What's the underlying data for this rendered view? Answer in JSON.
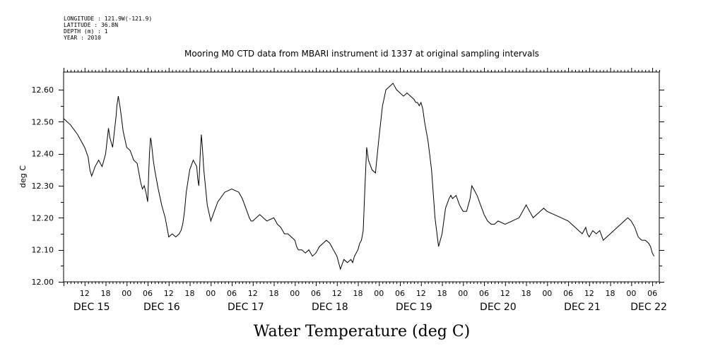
{
  "header": {
    "longitude": "LONGITUDE : 121.9W(-121.9)",
    "latitude": "LATITUDE : 36.8N",
    "depth": "DEPTH (m) : 1",
    "year": "YEAR : 2010"
  },
  "chart_data": {
    "type": "line",
    "title": "Mooring M0 CTD data from MBARI instrument id 1337 at original sampling intervals",
    "xlabel": "Water Temperature (deg C)",
    "ylabel": "deg C",
    "ylim": [
      12.0,
      12.65
    ],
    "xlim_hours": [
      0,
      170
    ],
    "y_ticks": [
      "12.00",
      "12.10",
      "12.20",
      "12.30",
      "12.40",
      "12.50",
      "12.60"
    ],
    "x_hour_ticks": [
      {
        "h": 6,
        "label": "12"
      },
      {
        "h": 12,
        "label": "18"
      },
      {
        "h": 18,
        "label": "00"
      },
      {
        "h": 24,
        "label": "06"
      },
      {
        "h": 30,
        "label": "12"
      },
      {
        "h": 36,
        "label": "18"
      },
      {
        "h": 42,
        "label": "00"
      },
      {
        "h": 48,
        "label": "06"
      },
      {
        "h": 54,
        "label": "12"
      },
      {
        "h": 60,
        "label": "18"
      },
      {
        "h": 66,
        "label": "00"
      },
      {
        "h": 72,
        "label": "06"
      },
      {
        "h": 78,
        "label": "12"
      },
      {
        "h": 84,
        "label": "18"
      },
      {
        "h": 90,
        "label": "00"
      },
      {
        "h": 96,
        "label": "06"
      },
      {
        "h": 102,
        "label": "12"
      },
      {
        "h": 108,
        "label": "18"
      },
      {
        "h": 114,
        "label": "00"
      },
      {
        "h": 120,
        "label": "06"
      },
      {
        "h": 126,
        "label": "12"
      },
      {
        "h": 132,
        "label": "18"
      },
      {
        "h": 138,
        "label": "00"
      },
      {
        "h": 144,
        "label": "06"
      },
      {
        "h": 150,
        "label": "12"
      },
      {
        "h": 156,
        "label": "18"
      },
      {
        "h": 162,
        "label": "00"
      },
      {
        "h": 168,
        "label": "06"
      }
    ],
    "day_labels": [
      {
        "h": 8,
        "label": "DEC 15"
      },
      {
        "h": 28,
        "label": "DEC 16"
      },
      {
        "h": 52,
        "label": "DEC 17"
      },
      {
        "h": 76,
        "label": "DEC 18"
      },
      {
        "h": 100,
        "label": "DEC 19"
      },
      {
        "h": 124,
        "label": "DEC 20"
      },
      {
        "h": 148,
        "label": "DEC 21"
      },
      {
        "h": 167,
        "label": "DEC 22"
      }
    ],
    "series": [
      {
        "x": [
          0,
          2,
          4,
          6,
          7,
          7.5,
          8,
          9,
          10,
          11,
          12,
          12.8,
          13.2,
          14,
          15,
          15.2,
          15.6,
          16.2,
          17,
          18,
          19,
          20,
          21,
          21.5,
          22,
          22.5,
          23,
          23.5,
          24,
          24.5,
          24.8,
          25,
          25.6,
          26,
          27,
          28,
          29,
          29.5,
          30,
          31,
          32,
          33,
          33.5,
          34,
          34.5,
          35,
          36,
          37,
          38,
          38.3,
          38.6,
          39,
          39.3,
          39.6,
          40,
          41,
          42,
          43,
          44,
          46,
          48,
          50,
          51,
          52,
          53,
          53.5,
          54,
          55,
          56,
          58,
          60,
          61,
          62,
          63,
          64,
          65,
          66,
          66.5,
          67,
          68,
          69,
          70,
          71,
          72,
          72.5,
          73,
          74,
          75,
          76,
          77,
          78,
          79,
          80,
          81,
          82,
          82.5,
          83,
          83.5,
          84,
          84.5,
          85,
          85.5,
          86,
          86.2,
          86.5,
          87,
          88,
          89,
          90,
          91,
          92,
          93,
          94,
          95,
          96,
          97,
          98,
          99,
          100,
          100.5,
          101,
          101.5,
          102,
          102.5,
          103,
          104,
          105,
          106,
          107,
          108,
          109,
          110,
          110.5,
          111,
          112,
          113,
          114,
          115,
          116,
          116.5,
          117,
          118,
          119,
          120,
          121,
          122,
          123,
          124,
          126,
          128,
          130,
          131,
          132,
          133,
          134,
          135,
          136,
          137,
          138,
          140,
          142,
          144,
          145,
          146,
          147,
          148,
          148.5,
          149,
          149.5,
          150,
          151,
          152,
          153,
          154,
          155,
          156,
          157,
          158,
          159,
          160,
          161,
          162,
          163,
          164,
          165,
          166,
          167,
          167.5,
          168,
          168.5
        ],
        "y": [
          12.51,
          12.49,
          12.46,
          12.42,
          12.39,
          12.35,
          12.33,
          12.36,
          12.38,
          12.36,
          12.4,
          12.48,
          12.45,
          12.42,
          12.52,
          12.55,
          12.58,
          12.54,
          12.47,
          12.42,
          12.41,
          12.38,
          12.37,
          12.34,
          12.31,
          12.29,
          12.3,
          12.28,
          12.25,
          12.4,
          12.45,
          12.44,
          12.38,
          12.35,
          12.29,
          12.24,
          12.2,
          12.17,
          12.14,
          12.15,
          12.14,
          12.15,
          12.16,
          12.18,
          12.22,
          12.28,
          12.35,
          12.38,
          12.36,
          12.32,
          12.3,
          12.4,
          12.46,
          12.42,
          12.35,
          12.24,
          12.19,
          12.22,
          12.25,
          12.28,
          12.29,
          12.28,
          12.26,
          12.23,
          12.2,
          12.19,
          12.19,
          12.2,
          12.21,
          12.19,
          12.2,
          12.18,
          12.17,
          12.15,
          12.15,
          12.14,
          12.13,
          12.11,
          12.1,
          12.1,
          12.09,
          12.1,
          12.08,
          12.09,
          12.1,
          12.11,
          12.12,
          12.13,
          12.12,
          12.1,
          12.08,
          12.04,
          12.07,
          12.06,
          12.07,
          12.06,
          12.08,
          12.09,
          12.1,
          12.12,
          12.13,
          12.16,
          12.3,
          12.35,
          12.42,
          12.38,
          12.35,
          12.34,
          12.45,
          12.55,
          12.6,
          12.61,
          12.62,
          12.6,
          12.59,
          12.58,
          12.59,
          12.58,
          12.57,
          12.56,
          12.56,
          12.55,
          12.56,
          12.54,
          12.5,
          12.44,
          12.35,
          12.2,
          12.11,
          12.15,
          12.23,
          12.26,
          12.27,
          12.26,
          12.27,
          12.24,
          12.22,
          12.22,
          12.26,
          12.3,
          12.29,
          12.27,
          12.24,
          12.21,
          12.19,
          12.18,
          12.18,
          12.19,
          12.18,
          12.19,
          12.2,
          12.22,
          12.24,
          12.22,
          12.2,
          12.21,
          12.22,
          12.23,
          12.22,
          12.21,
          12.2,
          12.19,
          12.18,
          12.17,
          12.16,
          12.15,
          12.16,
          12.17,
          12.15,
          12.14,
          12.16,
          12.15,
          12.16,
          12.13,
          12.14,
          12.15,
          12.16,
          12.17,
          12.18,
          12.19,
          12.2,
          12.19,
          12.17,
          12.14,
          12.13,
          12.13,
          12.12,
          12.11,
          12.09,
          12.08
        ]
      }
    ]
  }
}
